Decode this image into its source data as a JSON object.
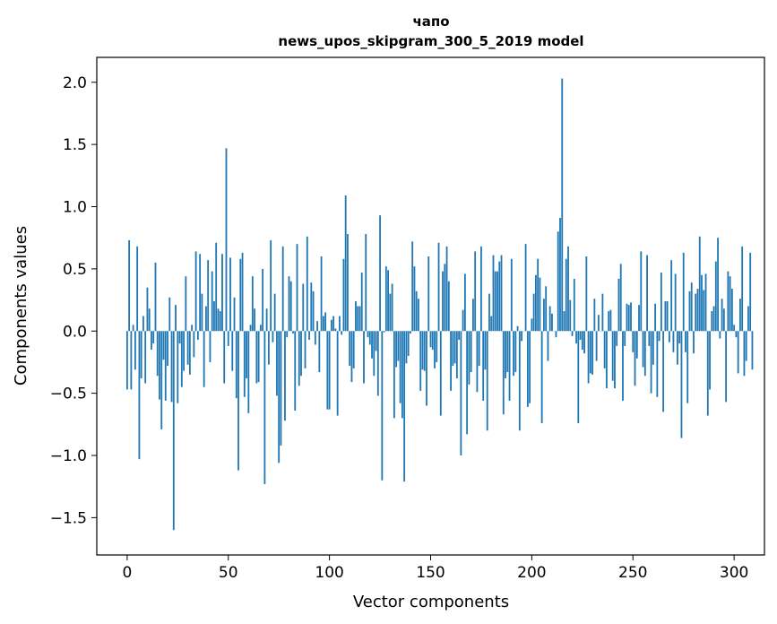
{
  "chart_data": {
    "type": "bar",
    "title_line1": "чапо",
    "title_line2": "news_upos_skipgram_300_5_2019 model",
    "xlabel": "Vector components",
    "ylabel": "Components values",
    "xlim": [
      -15,
      315
    ],
    "ylim": [
      -1.8,
      2.2
    ],
    "x_ticks": [
      0,
      50,
      100,
      150,
      200,
      250,
      300
    ],
    "x_tick_labels": [
      "0",
      "50",
      "100",
      "150",
      "200",
      "250",
      "300"
    ],
    "y_ticks": [
      2.0,
      1.5,
      1.0,
      0.5,
      0.0,
      -0.5,
      -1.0,
      -1.5
    ],
    "y_tick_labels": [
      "2.0",
      "1.5",
      "1.0",
      "0.5",
      "0.0",
      "−0.5",
      "−1.0",
      "−1.5"
    ],
    "bar_color": "#1f77b4",
    "grid": false,
    "values": [
      -0.47,
      0.73,
      -0.47,
      0.05,
      -0.31,
      0.68,
      -1.03,
      -0.38,
      0.12,
      -0.42,
      0.35,
      0.18,
      -0.15,
      -0.1,
      0.55,
      -0.36,
      -0.55,
      -0.79,
      -0.23,
      -0.56,
      -0.28,
      0.27,
      -0.57,
      -1.6,
      0.21,
      -0.58,
      -0.1,
      -0.45,
      -0.32,
      0.44,
      -0.27,
      -0.35,
      0.05,
      -0.21,
      0.64,
      -0.07,
      0.62,
      0.3,
      -0.45,
      0.2,
      0.57,
      -0.25,
      0.48,
      0.24,
      0.71,
      0.18,
      0.16,
      0.62,
      -0.42,
      1.47,
      -0.12,
      0.59,
      -0.32,
      0.27,
      -0.54,
      -1.12,
      0.58,
      0.63,
      -0.53,
      -0.38,
      -0.66,
      0.05,
      0.44,
      0.18,
      -0.42,
      -0.41,
      0.05,
      0.5,
      -1.23,
      0.18,
      -0.27,
      0.73,
      -0.09,
      0.3,
      -0.52,
      -1.06,
      -0.92,
      0.68,
      -0.72,
      -0.05,
      0.44,
      0.4,
      -0.02,
      -0.64,
      0.7,
      -0.44,
      -0.36,
      0.38,
      -0.3,
      0.76,
      -0.07,
      0.39,
      0.32,
      -0.11,
      0.08,
      -0.33,
      0.6,
      0.12,
      0.15,
      -0.63,
      -0.63,
      0.09,
      0.12,
      0.02,
      -0.68,
      0.12,
      -0.03,
      0.58,
      1.09,
      0.78,
      -0.28,
      -0.41,
      -0.3,
      0.24,
      0.2,
      0.2,
      0.47,
      -0.42,
      0.78,
      -0.05,
      -0.11,
      -0.22,
      -0.36,
      -0.16,
      -0.52,
      0.93,
      -1.2,
      -0.01,
      0.52,
      0.49,
      0.3,
      0.38,
      -0.7,
      -0.29,
      -0.24,
      -0.58,
      -0.7,
      -1.21,
      -0.26,
      -0.2,
      -0.02,
      0.72,
      0.52,
      0.32,
      0.26,
      -0.48,
      -0.31,
      -0.32,
      -0.6,
      0.6,
      -0.13,
      -0.15,
      -0.3,
      -0.25,
      0.71,
      -0.68,
      0.48,
      0.54,
      0.68,
      0.4,
      -0.48,
      -0.28,
      -0.26,
      -0.38,
      -0.07,
      -1.0,
      0.17,
      0.46,
      -0.83,
      -0.43,
      -0.33,
      0.26,
      0.64,
      -0.49,
      -0.28,
      0.68,
      -0.56,
      -0.31,
      -0.8,
      0.3,
      0.12,
      0.61,
      0.48,
      0.48,
      0.56,
      0.61,
      -0.67,
      -0.38,
      -0.33,
      -0.56,
      0.58,
      -0.36,
      -0.33,
      0.04,
      -0.8,
      -0.08,
      0.0,
      0.7,
      -0.61,
      -0.58,
      0.1,
      0.3,
      0.45,
      0.58,
      0.43,
      -0.74,
      0.26,
      0.36,
      -0.24,
      0.2,
      0.14,
      0.0,
      -0.05,
      0.8,
      0.91,
      2.03,
      0.16,
      0.58,
      0.68,
      0.25,
      -0.04,
      0.42,
      -0.1,
      -0.74,
      -0.07,
      -0.15,
      -0.18,
      0.6,
      -0.42,
      -0.34,
      -0.35,
      0.26,
      -0.24,
      0.13,
      0.0,
      0.3,
      -0.3,
      -0.46,
      0.16,
      0.17,
      -0.4,
      -0.46,
      -0.12,
      0.42,
      0.54,
      -0.56,
      -0.12,
      0.22,
      0.21,
      0.23,
      -0.17,
      -0.44,
      -0.22,
      0.21,
      0.64,
      -0.29,
      -0.36,
      0.61,
      -0.12,
      -0.5,
      -0.27,
      0.22,
      -0.53,
      -0.08,
      0.47,
      -0.65,
      0.24,
      0.24,
      -0.09,
      0.57,
      -0.17,
      0.46,
      -0.27,
      -0.1,
      -0.86,
      0.63,
      -0.17,
      -0.58,
      0.32,
      0.39,
      -0.18,
      0.3,
      0.34,
      0.76,
      0.45,
      0.33,
      0.46,
      -0.68,
      -0.47,
      0.16,
      0.2,
      0.56,
      0.75,
      -0.06,
      0.26,
      0.18,
      -0.57,
      0.48,
      0.44,
      0.34,
      0.05,
      -0.05,
      -0.34,
      0.26,
      0.68,
      -0.36,
      -0.24,
      0.2,
      0.63,
      -0.31
    ]
  }
}
